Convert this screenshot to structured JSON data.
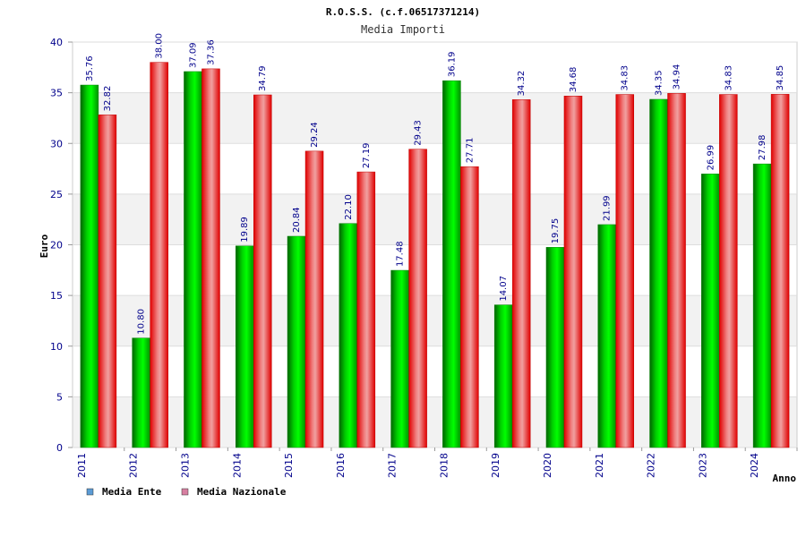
{
  "chart_data": {
    "type": "bar",
    "title": "R.O.S.S. (c.f.06517371214)",
    "subtitle": "Media Importi",
    "ylabel": "Euro",
    "xlabel": "Anno",
    "ylim": [
      0,
      40
    ],
    "yticks": [
      0,
      5,
      10,
      15,
      20,
      25,
      30,
      35,
      40
    ],
    "ytick_labels": [
      "0",
      "5",
      "10",
      "15",
      "20",
      "25",
      "30",
      "35",
      "40"
    ],
    "categories": [
      "2011",
      "2012",
      "2013",
      "2014",
      "2015",
      "2016",
      "2017",
      "2018",
      "2019",
      "2020",
      "2021",
      "2022",
      "2023",
      "2024"
    ],
    "series": [
      {
        "name": "Media Ente",
        "color": "#00c000",
        "legend_color": "#5b9bd5",
        "values": [
          35.76,
          10.8,
          37.09,
          19.89,
          20.84,
          22.1,
          17.48,
          36.19,
          14.07,
          19.75,
          21.99,
          34.35,
          26.99,
          27.98
        ],
        "labels": [
          "35.76",
          "10.80",
          "37.09",
          "19.89",
          "20.84",
          "22.10",
          "17.48",
          "36.19",
          "14.07",
          "19.75",
          "21.99",
          "34.35",
          "26.99",
          "27.98"
        ]
      },
      {
        "name": "Media Nazionale",
        "color": "#e00000",
        "legend_color": "#d77fa1",
        "values": [
          32.82,
          38.0,
          37.36,
          34.79,
          29.24,
          27.19,
          29.43,
          27.71,
          34.32,
          34.68,
          34.83,
          34.94,
          34.83,
          34.85
        ],
        "labels": [
          "32.82",
          "38.00",
          "37.36",
          "34.79",
          "29.24",
          "27.19",
          "29.43",
          "27.71",
          "34.32",
          "34.68",
          "34.83",
          "34.94",
          "34.83",
          "34.85"
        ]
      }
    ],
    "grid": true,
    "legend_position": "bottom-left"
  }
}
